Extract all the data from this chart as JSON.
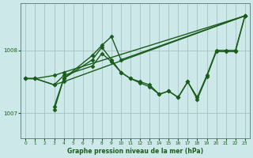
{
  "background_color": "#cce8e8",
  "plot_bg_color": "#cce8e8",
  "grid_color": "#a0b8b8",
  "line_color": "#1a5c1a",
  "marker_color": "#1a5c1a",
  "xlabel": "Graphe pression niveau de la mer (hPa)",
  "xlim": [
    -0.5,
    23.5
  ],
  "ylim": [
    1006.6,
    1008.75
  ],
  "yticks": [
    1007,
    1008
  ],
  "xticks": [
    0,
    1,
    2,
    3,
    4,
    5,
    6,
    7,
    8,
    9,
    10,
    11,
    12,
    13,
    14,
    15,
    16,
    17,
    18,
    19,
    20,
    21,
    22,
    23
  ],
  "series": [
    {
      "x": [
        0,
        1,
        3,
        4,
        23
      ],
      "y": [
        1007.55,
        1007.55,
        1007.6,
        1007.65,
        1008.55
      ],
      "marker": "D",
      "markersize": 2.5,
      "linewidth": 1.0
    },
    {
      "x": [
        0,
        1,
        3,
        4,
        23
      ],
      "y": [
        1007.55,
        1007.55,
        1007.45,
        1007.5,
        1008.55
      ],
      "marker": "D",
      "markersize": 2.5,
      "linewidth": 1.0
    },
    {
      "x": [
        3,
        4,
        7,
        8,
        9,
        10,
        11,
        12,
        13,
        14,
        15,
        16,
        17,
        18,
        19,
        20,
        21,
        22,
        23
      ],
      "y": [
        1007.05,
        1007.55,
        1007.85,
        1008.05,
        1007.85,
        1007.65,
        1007.55,
        1007.5,
        1007.45,
        1007.3,
        1007.35,
        1007.25,
        1007.5,
        1007.25,
        1007.6,
        1008.0,
        1008.0,
        1008.0,
        1008.55
      ],
      "marker": "D",
      "markersize": 2.5,
      "linewidth": 1.0
    },
    {
      "x": [
        0,
        1,
        3,
        4,
        7,
        8,
        9,
        10,
        11,
        12,
        13,
        14,
        15,
        16,
        17,
        18,
        19,
        20,
        21,
        22,
        23
      ],
      "y": [
        1007.55,
        1007.55,
        1007.45,
        1007.6,
        1007.75,
        1007.95,
        1007.82,
        1007.65,
        1007.55,
        1007.48,
        1007.42,
        1007.3,
        1007.35,
        1007.25,
        1007.5,
        1007.22,
        1007.58,
        1007.98,
        1007.98,
        1007.98,
        1008.55
      ],
      "marker": "D",
      "markersize": 2.5,
      "linewidth": 1.0
    },
    {
      "x": [
        3,
        4,
        7,
        8,
        9,
        10,
        23
      ],
      "y": [
        1007.1,
        1007.55,
        1007.92,
        1008.08,
        1008.22,
        1007.85,
        1008.55
      ],
      "marker": "D",
      "markersize": 2.5,
      "linewidth": 1.0
    }
  ]
}
